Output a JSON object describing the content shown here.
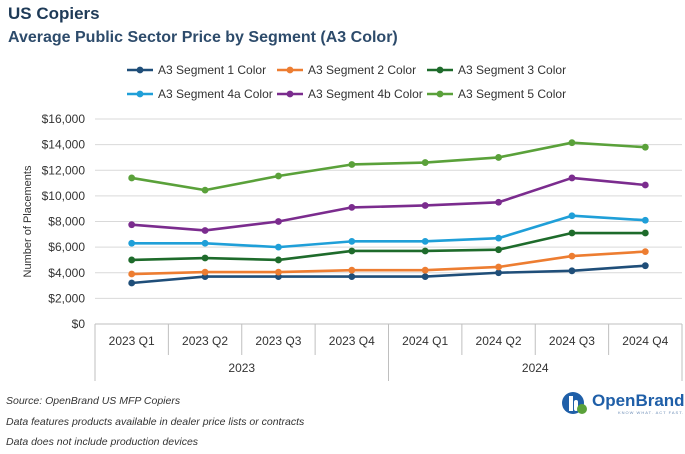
{
  "header": {
    "title": "US Copiers",
    "subtitle": "Average Public Sector Price by Segment (A3 Color)"
  },
  "chart_data": {
    "type": "line",
    "categories": [
      "2023 Q1",
      "2023 Q2",
      "2023 Q3",
      "2023 Q4",
      "2024 Q1",
      "2024 Q2",
      "2024 Q3",
      "2024 Q4"
    ],
    "year_groups": [
      {
        "label": "2023",
        "span": 4
      },
      {
        "label": "2024",
        "span": 4
      }
    ],
    "ylabel": "Number of Placements",
    "ylim": [
      0,
      16000
    ],
    "yticks": [
      {
        "value": 0,
        "label": "$0"
      },
      {
        "value": 2000,
        "label": "$2,000"
      },
      {
        "value": 4000,
        "label": "$4,000"
      },
      {
        "value": 6000,
        "label": "$6,000"
      },
      {
        "value": 8000,
        "label": "$8,000"
      },
      {
        "value": 10000,
        "label": "$10,000"
      },
      {
        "value": 12000,
        "label": "$12,000"
      },
      {
        "value": 14000,
        "label": "$14,000"
      },
      {
        "value": 16000,
        "label": "$16,000"
      }
    ],
    "grid": true,
    "legend_position": "top",
    "series": [
      {
        "name": "A3 Segment 1 Color",
        "color": "#1f4e79",
        "values": [
          3200,
          3700,
          3700,
          3700,
          3700,
          4000,
          4150,
          4550
        ]
      },
      {
        "name": "A3 Segment 2 Color",
        "color": "#ed7d31",
        "values": [
          3900,
          4050,
          4050,
          4200,
          4200,
          4450,
          5300,
          5650
        ]
      },
      {
        "name": "A3 Segment 3 Color",
        "color": "#1e6b2b",
        "values": [
          5000,
          5150,
          5000,
          5700,
          5700,
          5800,
          7100,
          7100
        ]
      },
      {
        "name": "A3 Segment 4a Color",
        "color": "#1f9fd8",
        "values": [
          6300,
          6300,
          6000,
          6450,
          6450,
          6700,
          8450,
          8100
        ]
      },
      {
        "name": "A3 Segment 4b Color",
        "color": "#7b2c8e",
        "values": [
          7750,
          7300,
          8000,
          9100,
          9250,
          9500,
          11400,
          10850
        ]
      },
      {
        "name": "A3 Segment 5 Color",
        "color": "#5aa13a",
        "values": [
          11400,
          10450,
          11550,
          12450,
          12600,
          13000,
          14150,
          13800
        ]
      }
    ]
  },
  "footnotes": {
    "source": "Source: OpenBrand US MFP Copiers",
    "note1": "Data features products available in dealer price lists or contracts",
    "note2": "Data does not include production devices"
  },
  "logo": {
    "name": "OpenBrand",
    "tagline": "KNOW WHAT. ACT FAST."
  }
}
